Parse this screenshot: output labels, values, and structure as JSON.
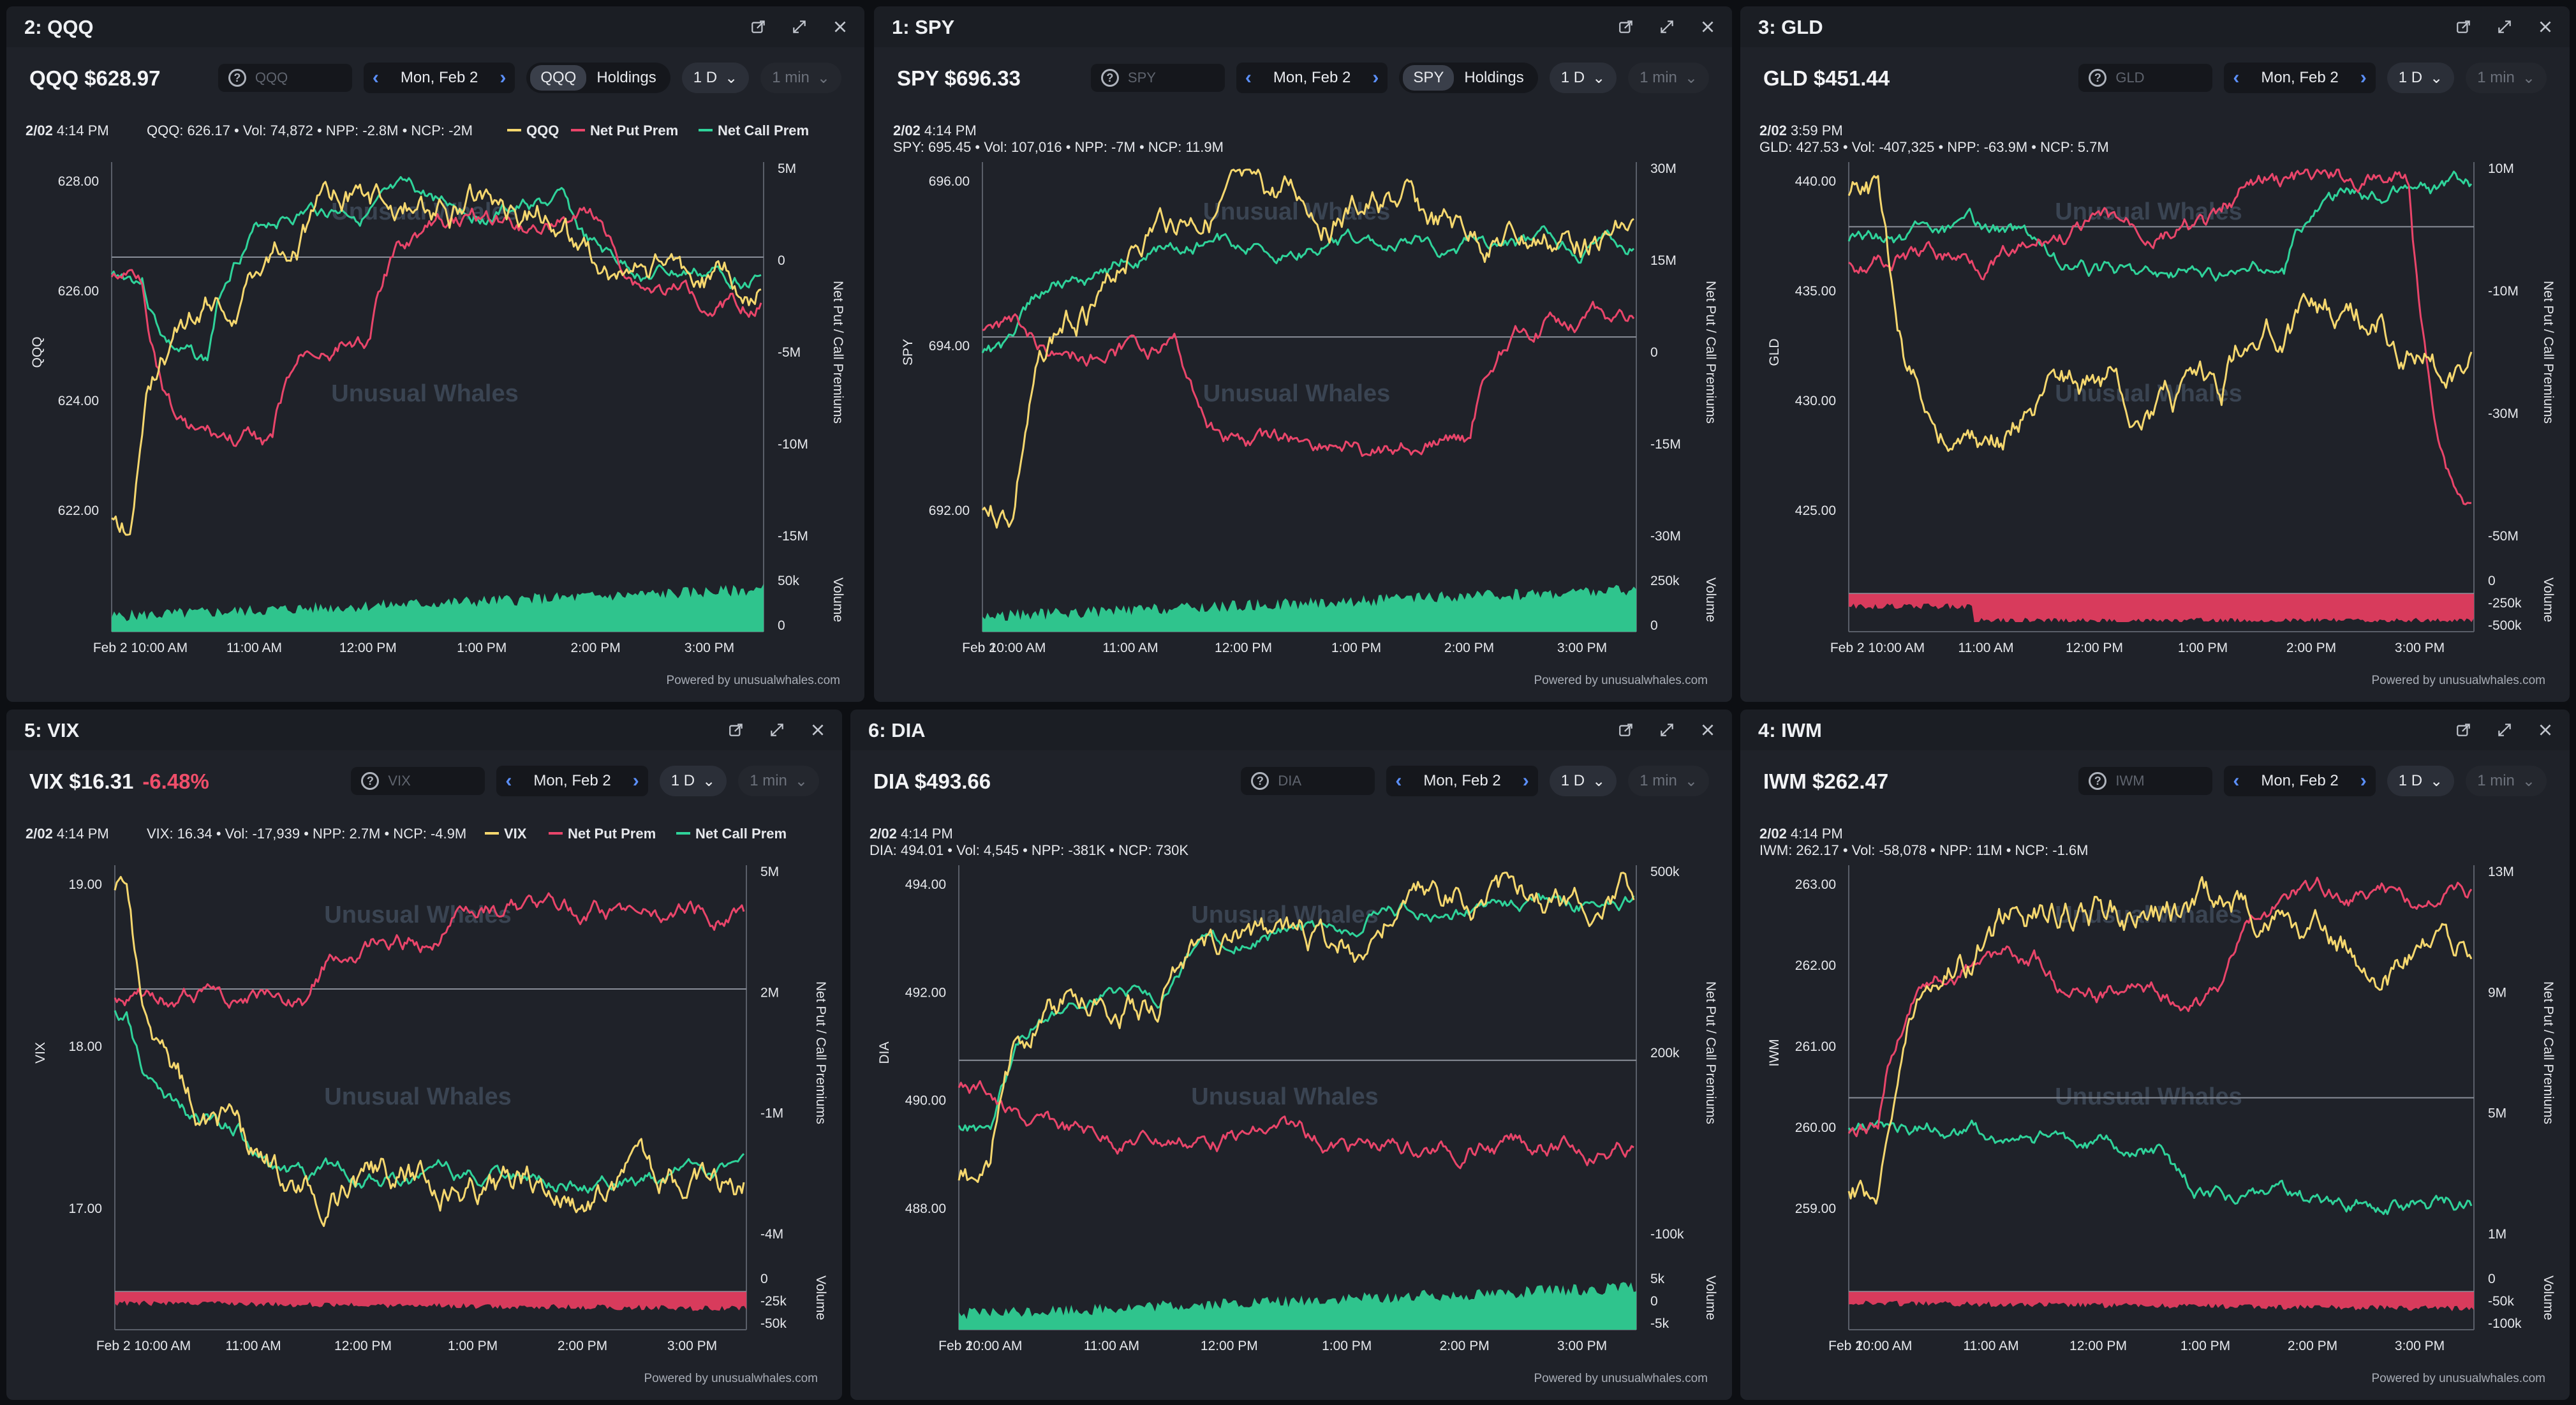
{
  "colors": {
    "price": "#f5d76e",
    "net_put": "#e9456a",
    "net_call": "#2fd39a",
    "volume_up": "#2fc48d",
    "volume_down": "#d83b5c",
    "text": "#e6e8ec",
    "muted": "#9aa0aa"
  },
  "icons": [
    "popout-icon",
    "expand-icon",
    "close-icon",
    "search-icon",
    "chevron-left-icon",
    "chevron-right-icon",
    "chevron-down-icon"
  ],
  "branding": "Unusual Whales",
  "powered_by": "Powered by unusualwhales.com",
  "panels": [
    {
      "tab_title": "2: QQQ",
      "symbol": "QQQ",
      "price": "$628.97",
      "change": "",
      "search_placeholder": "QQQ",
      "date": "Mon, Feb 2",
      "timeframe": "1 D",
      "interval": "1 min",
      "toggle": [
        "QQQ",
        "Holdings"
      ],
      "info_date": "2/02",
      "info_time": "4:14 PM",
      "info_values": "QQQ: 626.17 • Vol: 74,872 • NPP: -2.8M • NCP: -2M",
      "legend": [
        "QQQ",
        "Net Put Prem",
        "Net Call Prem"
      ],
      "axis_left_title": "QQQ",
      "axis_right_title": "Net Put / Call Premiums",
      "volume_title": "Volume",
      "y_ticks": [
        "628.00",
        "626.00",
        "624.00",
        "622.00"
      ],
      "r_ticks": [
        "5M",
        "0",
        "-5M",
        "-10M",
        "-15M"
      ],
      "vol_ticks": [
        "50k",
        "0"
      ],
      "x_ticks": [
        "Feb 2 10:00 AM",
        "11:00 AM",
        "12:00 PM",
        "1:00 PM",
        "2:00 PM",
        "3:00 PM"
      ]
    },
    {
      "tab_title": "1: SPY",
      "symbol": "SPY",
      "price": "$696.33",
      "change": "",
      "search_placeholder": "SPY",
      "date": "Mon, Feb 2",
      "timeframe": "1 D",
      "interval": "1 min",
      "toggle": [
        "SPY",
        "Holdings"
      ],
      "info_date": "2/02",
      "info_time": "4:14 PM",
      "info_values": "SPY: 695.45 • Vol: 107,016 • NPP: -7M • NCP: 11.9M",
      "legend": [],
      "axis_left_title": "SPY",
      "axis_right_title": "Net Put / Call Premiums",
      "volume_title": "Volume",
      "y_ticks": [
        "696.00",
        "694.00",
        "692.00"
      ],
      "r_ticks": [
        "30M",
        "15M",
        "0",
        "-15M",
        "-30M"
      ],
      "vol_ticks": [
        "250k",
        "0"
      ],
      "x_ticks": [
        "Feb 2",
        "10:00 AM",
        "11:00 AM",
        "12:00 PM",
        "1:00 PM",
        "2:00 PM",
        "3:00 PM"
      ]
    },
    {
      "tab_title": "3: GLD",
      "symbol": "GLD",
      "price": "$451.44",
      "change": "",
      "search_placeholder": "GLD",
      "date": "Mon, Feb 2",
      "timeframe": "1 D",
      "interval": "1 min",
      "toggle": [],
      "info_date": "2/02",
      "info_time": "3:59 PM",
      "info_values": "GLD: 427.53 • Vol: -407,325 • NPP: -63.9M • NCP: 5.7M",
      "legend": [],
      "axis_left_title": "GLD",
      "axis_right_title": "Net Put / Call Premiums",
      "volume_title": "Volume",
      "y_ticks": [
        "440.00",
        "435.00",
        "430.00",
        "425.00"
      ],
      "r_ticks": [
        "10M",
        "-10M",
        "-30M",
        "-50M"
      ],
      "vol_ticks": [
        "0",
        "-250k",
        "-500k"
      ],
      "x_ticks": [
        "Feb 2 10:00 AM",
        "11:00 AM",
        "12:00 PM",
        "1:00 PM",
        "2:00 PM",
        "3:00 PM"
      ]
    },
    {
      "tab_title": "5: VIX",
      "symbol": "VIX",
      "price": "$16.31",
      "change": "-6.48%",
      "search_placeholder": "VIX",
      "date": "Mon, Feb 2",
      "timeframe": "1 D",
      "interval": "1 min",
      "toggle": [],
      "info_date": "2/02",
      "info_time": "4:14 PM",
      "info_values": "VIX: 16.34 • Vol: -17,939 • NPP: 2.7M • NCP: -4.9M",
      "legend": [
        "VIX",
        "Net Put Prem",
        "Net Call Prem"
      ],
      "axis_left_title": "VIX",
      "axis_right_title": "Net Put / Call Premiums",
      "volume_title": "Volume",
      "y_ticks": [
        "19.00",
        "18.00",
        "17.00"
      ],
      "r_ticks": [
        "5M",
        "2M",
        "-1M",
        "-4M"
      ],
      "vol_ticks": [
        "0",
        "-25k",
        "-50k"
      ],
      "x_ticks": [
        "Feb 2 10:00 AM",
        "11:00 AM",
        "12:00 PM",
        "1:00 PM",
        "2:00 PM",
        "3:00 PM"
      ]
    },
    {
      "tab_title": "6: DIA",
      "symbol": "DIA",
      "price": "$493.66",
      "change": "",
      "search_placeholder": "DIA",
      "date": "Mon, Feb 2",
      "timeframe": "1 D",
      "interval": "1 min",
      "toggle": [],
      "info_date": "2/02",
      "info_time": "4:14 PM",
      "info_values": "DIA: 494.01 • Vol: 4,545 • NPP: -381K • NCP: 730K",
      "legend": [],
      "axis_left_title": "DIA",
      "axis_right_title": "Net Put / Call Premiums",
      "volume_title": "Volume",
      "y_ticks": [
        "494.00",
        "492.00",
        "490.00",
        "488.00"
      ],
      "r_ticks": [
        "500k",
        "200k",
        "-100k"
      ],
      "vol_ticks": [
        "5k",
        "0",
        "-5k"
      ],
      "x_ticks": [
        "Feb 2",
        "10:00 AM",
        "11:00 AM",
        "12:00 PM",
        "1:00 PM",
        "2:00 PM",
        "3:00 PM"
      ]
    },
    {
      "tab_title": "4: IWM",
      "symbol": "IWM",
      "price": "$262.47",
      "change": "",
      "search_placeholder": "IWM",
      "date": "Mon, Feb 2",
      "timeframe": "1 D",
      "interval": "1 min",
      "toggle": [],
      "info_date": "2/02",
      "info_time": "4:14 PM",
      "info_values": "IWM: 262.17 • Vol: -58,078 • NPP: 11M • NCP: -1.6M",
      "legend": [],
      "axis_left_title": "IWM",
      "axis_right_title": "Net Put / Call Premiums",
      "volume_title": "Volume",
      "y_ticks": [
        "263.00",
        "262.00",
        "261.00",
        "260.00",
        "259.00"
      ],
      "r_ticks": [
        "13M",
        "9M",
        "5M",
        "1M"
      ],
      "vol_ticks": [
        "0",
        "-50k",
        "-100k"
      ],
      "x_ticks": [
        "Feb 2",
        "10:00 AM",
        "11:00 AM",
        "12:00 PM",
        "1:00 PM",
        "2:00 PM",
        "3:00 PM"
      ]
    }
  ]
}
